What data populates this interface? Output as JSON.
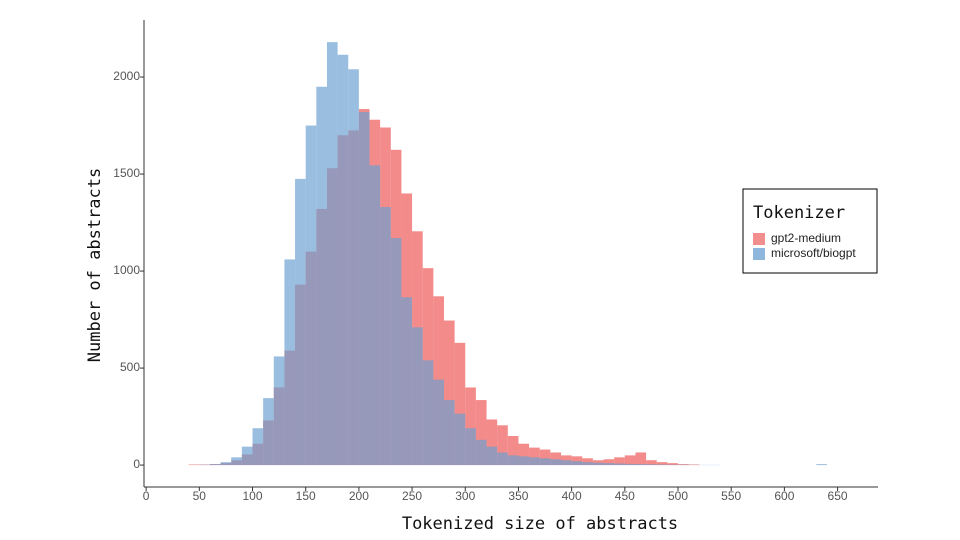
{
  "chart_data": {
    "type": "histogram",
    "xlabel": "Tokenized size of abstracts",
    "ylabel": "Number of abstracts",
    "legend_title": "Tokenizer",
    "legend_position": "right",
    "bins": [
      40,
      50,
      60,
      70,
      80,
      90,
      100,
      110,
      120,
      130,
      140,
      150,
      160,
      170,
      180,
      190,
      200,
      210,
      220,
      230,
      240,
      250,
      260,
      270,
      280,
      290,
      300,
      310,
      320,
      330,
      340,
      350,
      360,
      370,
      380,
      390,
      400,
      410,
      420,
      430,
      440,
      450,
      460,
      470,
      480,
      490,
      500,
      510,
      520,
      530,
      540,
      550,
      560,
      570,
      580,
      590,
      600,
      610,
      620,
      630,
      640
    ],
    "series": [
      {
        "name": "gpt2-medium",
        "color": "#ee6a68",
        "values": [
          3,
          3,
          5,
          10,
          25,
          55,
          110,
          230,
          400,
          590,
          930,
          1100,
          1320,
          1530,
          1700,
          1725,
          1835,
          1780,
          1740,
          1625,
          1400,
          1205,
          1015,
          870,
          745,
          630,
          400,
          335,
          235,
          205,
          150,
          110,
          90,
          80,
          65,
          50,
          45,
          35,
          25,
          30,
          40,
          50,
          65,
          25,
          15,
          10,
          5,
          3,
          0,
          0,
          0,
          0,
          0,
          0,
          0,
          0,
          0,
          0,
          0,
          0
        ]
      },
      {
        "name": "microsoft/biogpt",
        "color": "#6a9fd1",
        "values": [
          0,
          2,
          5,
          15,
          40,
          95,
          190,
          345,
          560,
          1060,
          1475,
          1750,
          1950,
          2180,
          2115,
          2040,
          1820,
          1545,
          1330,
          1170,
          865,
          710,
          540,
          440,
          335,
          265,
          190,
          130,
          95,
          65,
          50,
          45,
          40,
          35,
          30,
          25,
          20,
          15,
          12,
          10,
          8,
          6,
          5,
          4,
          3,
          2,
          2,
          1,
          1,
          1,
          0,
          0,
          0,
          0,
          0,
          0,
          0,
          0,
          0,
          5
        ]
      }
    ],
    "xlim": [
      -2,
      688
    ],
    "ylim": [
      -113,
      2294
    ],
    "xticks": [
      0,
      50,
      100,
      150,
      200,
      250,
      300,
      350,
      400,
      450,
      500,
      550,
      600,
      650
    ],
    "yticks": [
      0,
      500,
      1000,
      1500,
      2000
    ]
  }
}
